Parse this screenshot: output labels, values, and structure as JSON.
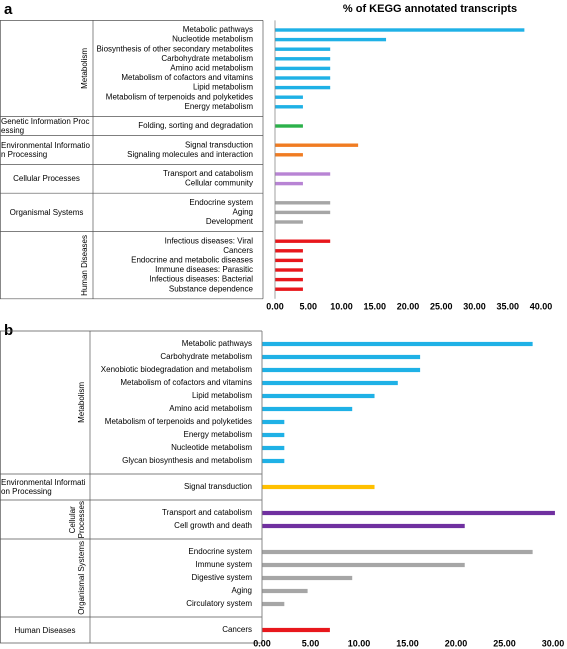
{
  "chart_data": [
    {
      "type": "bar",
      "orientation": "horizontal",
      "panel": "a",
      "title": "% of KEGG annotated transcripts",
      "xlim": [
        0,
        40
      ],
      "xticks": [
        {
          "value": 0,
          "label": "0.00"
        },
        {
          "value": 5,
          "label": "5.00"
        },
        {
          "value": 10,
          "label": "10.00"
        },
        {
          "value": 15,
          "label": "15.00"
        },
        {
          "value": 20,
          "label": "20.00"
        },
        {
          "value": 25,
          "label": "25.00"
        },
        {
          "value": 30,
          "label": "30.00"
        },
        {
          "value": 35,
          "label": "35.00"
        },
        {
          "value": 40,
          "label": "40.00"
        }
      ],
      "groups": [
        {
          "name": "Metabolism",
          "color": "#1fb1e6",
          "categories": [
            "Metabolic pathways",
            "Nucleotide metabolism",
            "Biosynthesis of other secondary metabolites",
            "Carbohydrate metabolism",
            "Amino acid metabolism",
            "Metabolism of cofactors and vitamins",
            "Lipid metabolism",
            "Metabolism of terpenoids and polyketides",
            "Energy metabolism"
          ],
          "values": [
            37.5,
            16.7,
            8.3,
            8.3,
            8.3,
            8.3,
            8.3,
            4.2,
            4.2
          ]
        },
        {
          "name": "Genetic Information Processing",
          "color": "#2bb14a",
          "categories": [
            "Folding, sorting and degradation"
          ],
          "values": [
            4.2
          ]
        },
        {
          "name": "Environmental Information Processing",
          "color": "#f07c22",
          "categories": [
            "Signal transduction",
            "Signaling molecules and interaction"
          ],
          "values": [
            12.5,
            4.2
          ]
        },
        {
          "name": "Cellular Processes",
          "color": "#b884d4",
          "categories": [
            "Transport and catabolism",
            "Cellular community"
          ],
          "values": [
            8.3,
            4.2
          ]
        },
        {
          "name": "Organismal Systems",
          "color": "#a6a6a6",
          "categories": [
            "Endocrine system",
            "Aging",
            "Development"
          ],
          "values": [
            8.3,
            8.3,
            4.2
          ]
        },
        {
          "name": "Human Diseases",
          "color": "#e8171c",
          "categories": [
            "Infectious diseases: Viral",
            "Cancers",
            "Endocrine and metabolic diseases",
            "Immune diseases: Parasitic",
            "Infectious diseases: Bacterial",
            "Substance dependence"
          ],
          "values": [
            8.3,
            4.2,
            4.2,
            4.2,
            4.2,
            4.2
          ]
        }
      ]
    },
    {
      "type": "bar",
      "orientation": "horizontal",
      "panel": "b",
      "xlim": [
        0,
        30
      ],
      "xticks": [
        {
          "value": 0,
          "label": "0.00"
        },
        {
          "value": 5,
          "label": "5.00"
        },
        {
          "value": 10,
          "label": "10.00"
        },
        {
          "value": 15,
          "label": "15.00"
        },
        {
          "value": 20,
          "label": "20.00"
        },
        {
          "value": 25,
          "label": "25.00"
        },
        {
          "value": 30,
          "label": "30.00"
        }
      ],
      "groups": [
        {
          "name": "Metabolism",
          "color": "#1fb1e6",
          "categories": [
            "Metabolic pathways",
            "Carbohydrate metabolism",
            "Xenobiotic biodegradation and metabolism",
            "Metabolism of cofactors and vitamins",
            "Lipid metabolism",
            "Amino acid metabolism",
            "Metabolism of terpenoids and polyketides",
            "Energy metabolism",
            "Nucleotide metabolism",
            "Glycan biosynthesis and metabolism"
          ],
          "values": [
            27.9,
            16.3,
            16.3,
            14.0,
            11.6,
            9.3,
            2.3,
            2.3,
            2.3,
            2.3
          ]
        },
        {
          "name": "Environmental Information Processing",
          "color": "#ffc000",
          "categories": [
            "Signal transduction"
          ],
          "values": [
            11.6
          ]
        },
        {
          "name": "Cellular Processes",
          "color": "#7030a0",
          "categories": [
            "Transport and catabolism",
            "Cell growth and death"
          ],
          "values": [
            30.2,
            20.9
          ]
        },
        {
          "name": "Organismal Systems",
          "color": "#a6a6a6",
          "categories": [
            "Endocrine system",
            "Immune system",
            "Digestive system",
            "Aging",
            "Circulatory system"
          ],
          "values": [
            27.9,
            20.9,
            9.3,
            4.7,
            2.3
          ]
        },
        {
          "name": "Human Diseases",
          "color": "#e8171c",
          "categories": [
            "Cancers"
          ],
          "values": [
            7.0
          ]
        }
      ]
    }
  ]
}
